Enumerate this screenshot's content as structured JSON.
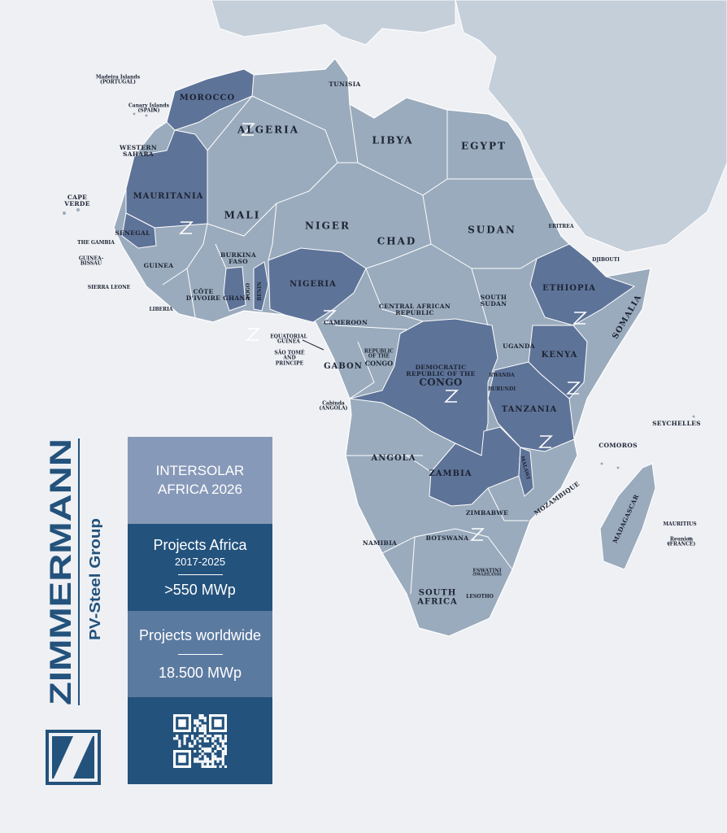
{
  "brand": {
    "name": "ZIMMERMANN",
    "tagline": "PV-Steel Group",
    "color": "#23527c"
  },
  "panel": {
    "event": [
      "INTERSOLAR",
      "AFRICA 2026"
    ],
    "africa_title": "Projects Africa",
    "africa_period": "2017-2025",
    "africa_value": ">550 MWp",
    "world_title": "Projects worldwide",
    "world_value": "18.500 MWp",
    "qr_icon": "qr-code-icon"
  },
  "colors": {
    "background": "#eef0f4",
    "land": "#9aabbd",
    "highlighted": "#5e7398",
    "other_continents": "#c5cfda"
  },
  "highlighted_countries": [
    "Morocco",
    "Mauritania",
    "Senegal",
    "Ghana",
    "Benin",
    "Nigeria",
    "Democratic Republic of the Congo",
    "Ethiopia",
    "Kenya",
    "Tanzania",
    "Zambia",
    "Malawi"
  ],
  "labels": {
    "madeira": [
      "Madeira Islands",
      "(PORTUGAL)"
    ],
    "canary": [
      "Canary Islands",
      "(SPAIN)"
    ],
    "morocco": "MOROCCO",
    "tunisia": "TUNISIA",
    "algeria": "ALGERIA",
    "libya": "LIBYA",
    "egypt": "EGYPT",
    "western_sahara": [
      "WESTERN",
      "SAHARA"
    ],
    "mauritania": "MAURITANIA",
    "cape_verde": [
      "CAPE",
      "VERDE"
    ],
    "mali": "MALI",
    "niger": "NIGER",
    "chad": "CHAD",
    "sudan": "SUDAN",
    "eritrea": "ERITREA",
    "djibouti": "DJIBOUTI",
    "senegal": "SENEGAL",
    "gambia": "THE GAMBIA",
    "guinea_bissau": [
      "GUINEA-",
      "BISSAU"
    ],
    "guinea": "GUINEA",
    "burkina": [
      "BURKINA",
      "FASO"
    ],
    "sierra_leone": "SIERRA LEONE",
    "liberia": "LIBERIA",
    "cote": [
      "CÔTE",
      "D'IVOIRE"
    ],
    "ghana": "GHANA",
    "togo": "TOGO",
    "benin": "BENIN",
    "nigeria": "NIGERIA",
    "ethiopia": "ETHIOPIA",
    "somalia": "SOMALIA",
    "south_sudan": [
      "SOUTH",
      "SUDAN"
    ],
    "car": [
      "CENTRAL AFRICAN",
      "REPUBLIC"
    ],
    "cameroon": "CAMEROON",
    "eq_guinea": [
      "EQUATORIAL",
      "GUINEA"
    ],
    "sao_tome": [
      "SÃO TOMÉ",
      "AND",
      "PRINCIPE"
    ],
    "gabon": "GABON",
    "rep_congo": [
      "REPUBLIC",
      "OF THE",
      "CONGO"
    ],
    "drc": [
      "DEMOCRATIC",
      "REPUBLIC OF THE",
      "CONGO"
    ],
    "uganda": "UGANDA",
    "kenya": "KENYA",
    "rwanda": "RWANDA",
    "burundi": "BURUNDI",
    "tanzania": "TANZANIA",
    "cabinda": [
      "Cabinda",
      "(ANGOLA)"
    ],
    "seychelles": "SEYCHELLES",
    "comoros": "COMOROS",
    "angola": "ANGOLA",
    "zambia": "ZAMBIA",
    "malawi": "MALAWI",
    "mozambique": "MOZAMBIQUE",
    "zimbabwe": "ZIMBABWE",
    "madagascar": "MADAGASCAR",
    "mauritius": "MAURITIUS",
    "reunion": [
      "Reunion",
      "(FRANCE)"
    ],
    "namibia": "NAMIBIA",
    "botswana": "BOTSWANA",
    "eswatini": [
      "ESWATINI",
      "(SWAZILAND)"
    ],
    "lesotho": "LESOTHO",
    "south_africa": [
      "SOUTH",
      "AFRICA"
    ]
  }
}
